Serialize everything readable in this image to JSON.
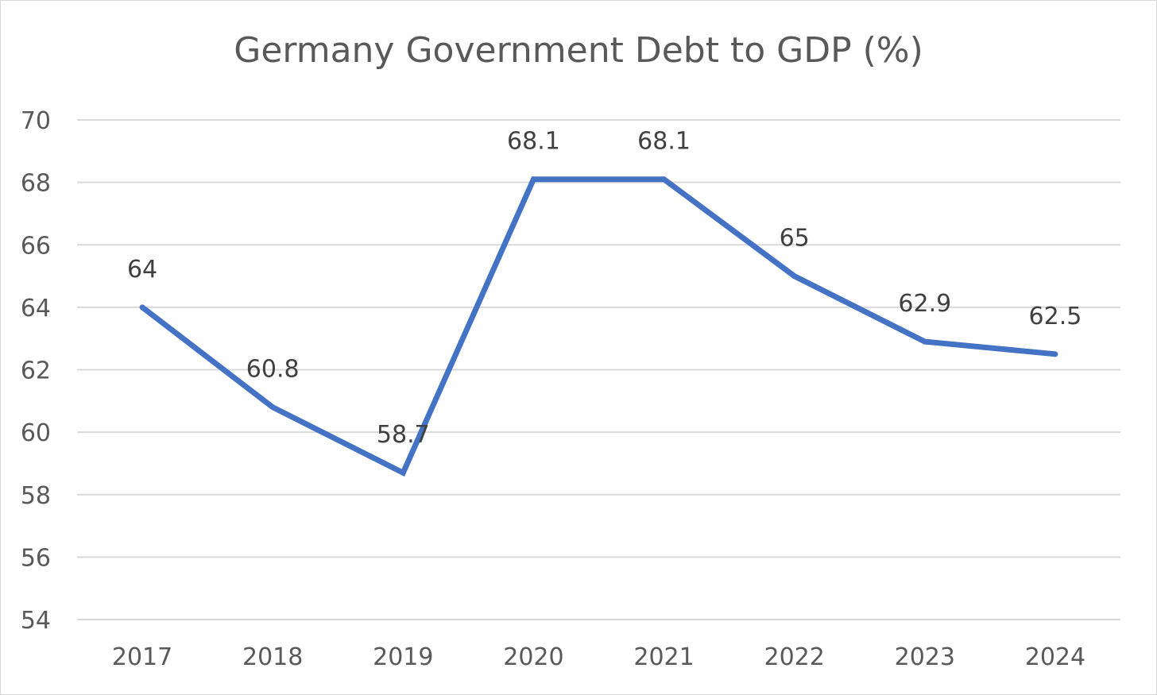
{
  "chart_data": {
    "type": "line",
    "title": "Germany Government Debt to GDP (%)",
    "xlabel": "",
    "ylabel": "",
    "categories": [
      "2017",
      "2018",
      "2019",
      "2020",
      "2021",
      "2022",
      "2023",
      "2024"
    ],
    "series": [
      {
        "name": "Government Debt to GDP",
        "values": [
          64,
          60.8,
          58.7,
          68.1,
          68.1,
          65,
          62.9,
          62.5
        ],
        "labels": [
          "64",
          "60.8",
          "58.7",
          "68.1",
          "68.1",
          "65",
          "62.9",
          "62.5"
        ]
      }
    ],
    "ylim": [
      54,
      70
    ],
    "yticks": [
      54,
      56,
      58,
      60,
      62,
      64,
      66,
      68,
      70
    ],
    "grid": true,
    "legend": "none",
    "colors": {
      "line": "#4472c4",
      "grid": "#d9d9d9",
      "tick_text": "#595959",
      "data_label": "#404040",
      "title": "#595959"
    }
  }
}
